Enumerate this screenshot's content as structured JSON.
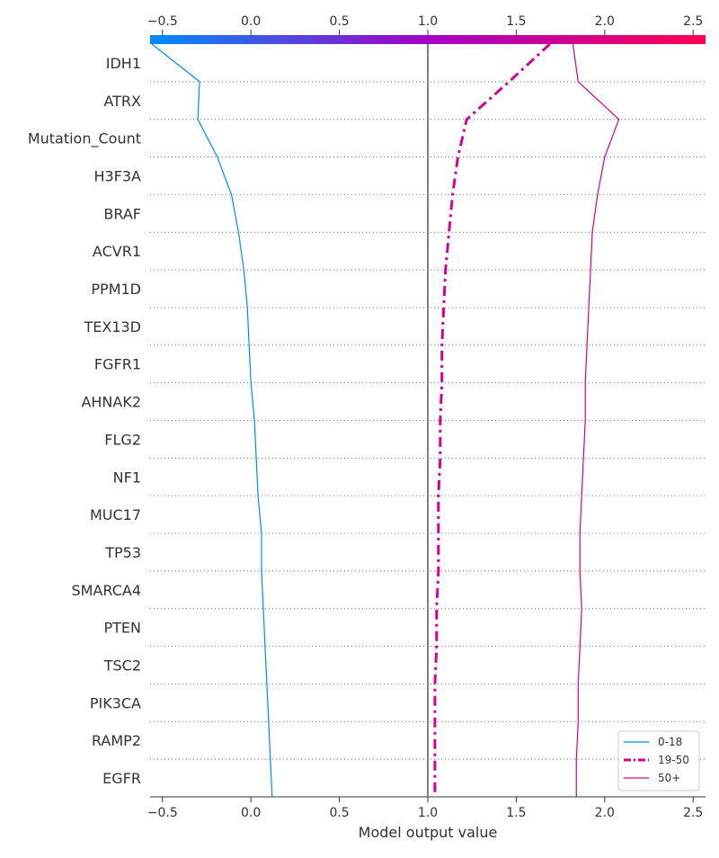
{
  "chart_data": {
    "type": "line",
    "xlabel": "Model output value",
    "ylabel": "",
    "xlim": [
      -0.57,
      2.57
    ],
    "x_ticks": [
      -0.5,
      0.0,
      0.5,
      1.0,
      1.5,
      2.0,
      2.5
    ],
    "tick_labels": [
      "−0.5",
      "0.0",
      "0.5",
      "1.0",
      "1.5",
      "2.0",
      "2.5"
    ],
    "base_value": 1.0,
    "color_bar": {
      "from": "#008bfb",
      "mid": "#a300c6",
      "to": "#ff0052"
    },
    "features": [
      "IDH1",
      "ATRX",
      "Mutation_Count",
      "H3F3A",
      "BRAF",
      "ACVR1",
      "PPM1D",
      "TEX13D",
      "FGFR1",
      "AHNAK2",
      "FLG2",
      "NF1",
      "MUC17",
      "TP53",
      "SMARCA4",
      "PTEN",
      "TSC2",
      "PIK3CA",
      "RAMP2",
      "EGFR"
    ],
    "legend_placement": "lower-right",
    "series": [
      {
        "name": "0-18",
        "color": "#008bfb",
        "style": "solid",
        "values": [
          -0.56,
          -0.29,
          -0.3,
          -0.19,
          -0.11,
          -0.07,
          -0.04,
          -0.02,
          -0.01,
          0.0,
          0.02,
          0.03,
          0.04,
          0.06,
          0.06,
          0.07,
          0.08,
          0.09,
          0.1,
          0.11,
          0.12
        ]
      },
      {
        "name": "19-50",
        "color": "#d6008f",
        "style": "dashdot",
        "values": [
          1.69,
          1.46,
          1.22,
          1.17,
          1.14,
          1.12,
          1.1,
          1.09,
          1.08,
          1.08,
          1.07,
          1.07,
          1.06,
          1.06,
          1.06,
          1.05,
          1.05,
          1.04,
          1.04,
          1.04,
          1.04
        ]
      },
      {
        "name": "50+",
        "color": "#e0007a",
        "style": "solid",
        "values": [
          1.82,
          1.85,
          2.08,
          2.0,
          1.96,
          1.93,
          1.92,
          1.91,
          1.9,
          1.89,
          1.89,
          1.88,
          1.87,
          1.86,
          1.86,
          1.87,
          1.86,
          1.85,
          1.85,
          1.84,
          1.84
        ]
      }
    ]
  }
}
